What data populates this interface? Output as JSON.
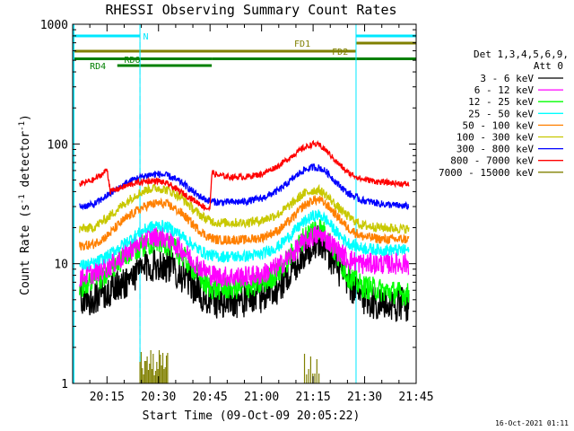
{
  "chart_data": {
    "type": "line",
    "title": "RHESSI Observing Summary Count Rates",
    "xlabel": "Start Time (09-Oct-09 20:05:22)",
    "ylabel_main": "Count Rate (s",
    "ylabel_sup1": "-1",
    "ylabel_mid": " detector",
    "ylabel_sup2": "-1",
    "ylabel_end": ")",
    "y_scale": "log",
    "ylim": [
      1,
      1000
    ],
    "xlim_minutes": [
      0,
      100
    ],
    "x_ticks": [
      {
        "minutes": 10,
        "label": "20:15"
      },
      {
        "minutes": 25,
        "label": "20:30"
      },
      {
        "minutes": 40,
        "label": "20:45"
      },
      {
        "minutes": 55,
        "label": "21:00"
      },
      {
        "minutes": 70,
        "label": "21:15"
      },
      {
        "minutes": 85,
        "label": "21:30"
      },
      {
        "minutes": 100,
        "label": "21:45"
      }
    ],
    "y_ticks": [
      {
        "value": 1,
        "label": "1"
      },
      {
        "value": 10,
        "label": "10"
      },
      {
        "value": 100,
        "label": "100"
      },
      {
        "value": 1000,
        "label": "1000"
      }
    ],
    "legend_header": [
      "Det 1,3,4,5,6,9,",
      "Att 0"
    ],
    "legend_placement": "right",
    "series": [
      {
        "name": "3 - 6 keV",
        "color": "#000000",
        "noise": 0.15,
        "points": [
          [
            2,
            5
          ],
          [
            6,
            5.3
          ],
          [
            10,
            5.8
          ],
          [
            14,
            6.5
          ],
          [
            18,
            8.2
          ],
          [
            22,
            9.6
          ],
          [
            25,
            10
          ],
          [
            28,
            9.6
          ],
          [
            32,
            8
          ],
          [
            36,
            6.2
          ],
          [
            38,
            5.2
          ],
          [
            40,
            4.9
          ],
          [
            45,
            4.9
          ],
          [
            50,
            5
          ],
          [
            55,
            5.4
          ],
          [
            60,
            6.5
          ],
          [
            64,
            9
          ],
          [
            67,
            12
          ],
          [
            70,
            15
          ],
          [
            72,
            15.5
          ],
          [
            74,
            13
          ],
          [
            77,
            9.5
          ],
          [
            80,
            7
          ],
          [
            84,
            5.3
          ],
          [
            88,
            4.7
          ],
          [
            93,
            4.6
          ],
          [
            98,
            4.6
          ]
        ]
      },
      {
        "name": "6 - 12 keV",
        "color": "#ff00ff",
        "noise": 0.09,
        "points": [
          [
            2,
            7.8
          ],
          [
            6,
            8.3
          ],
          [
            10,
            9.3
          ],
          [
            14,
            11
          ],
          [
            18,
            14
          ],
          [
            22,
            16.5
          ],
          [
            25,
            17
          ],
          [
            28,
            16
          ],
          [
            32,
            13
          ],
          [
            36,
            10
          ],
          [
            39,
            8.5
          ],
          [
            42,
            7.8
          ],
          [
            50,
            7.8
          ],
          [
            55,
            8.1
          ],
          [
            60,
            9.5
          ],
          [
            64,
            12
          ],
          [
            67,
            15
          ],
          [
            70,
            17
          ],
          [
            72,
            17.3
          ],
          [
            74,
            16
          ],
          [
            77,
            13
          ],
          [
            80,
            11
          ],
          [
            84,
            10
          ],
          [
            90,
            10
          ],
          [
            98,
            10
          ]
        ]
      },
      {
        "name": "12 - 25 keV",
        "color": "#00ff00",
        "noise": 0.1,
        "points": [
          [
            2,
            6.5
          ],
          [
            6,
            7
          ],
          [
            10,
            8.2
          ],
          [
            14,
            10.5
          ],
          [
            18,
            13
          ],
          [
            22,
            15
          ],
          [
            25,
            15.5
          ],
          [
            28,
            14.5
          ],
          [
            32,
            11.5
          ],
          [
            36,
            8.5
          ],
          [
            39,
            6.5
          ],
          [
            42,
            6.2
          ],
          [
            50,
            6.3
          ],
          [
            55,
            6.8
          ],
          [
            60,
            8.5
          ],
          [
            64,
            12
          ],
          [
            67,
            16
          ],
          [
            70,
            19.5
          ],
          [
            72,
            20
          ],
          [
            74,
            17
          ],
          [
            77,
            11.5
          ],
          [
            80,
            8
          ],
          [
            84,
            6.5
          ],
          [
            90,
            6
          ],
          [
            98,
            5.5
          ]
        ]
      },
      {
        "name": "25 - 50 keV",
        "color": "#00ffff",
        "noise": 0.05,
        "points": [
          [
            2,
            9.6
          ],
          [
            6,
            10
          ],
          [
            10,
            11.5
          ],
          [
            14,
            14
          ],
          [
            18,
            17
          ],
          [
            22,
            20
          ],
          [
            25,
            21
          ],
          [
            28,
            20
          ],
          [
            32,
            17
          ],
          [
            36,
            13.5
          ],
          [
            39,
            12
          ],
          [
            42,
            11.5
          ],
          [
            50,
            11.5
          ],
          [
            55,
            12
          ],
          [
            60,
            14
          ],
          [
            64,
            18
          ],
          [
            67,
            22
          ],
          [
            70,
            25
          ],
          [
            72,
            25.5
          ],
          [
            74,
            23
          ],
          [
            77,
            18
          ],
          [
            80,
            15
          ],
          [
            84,
            13.5
          ],
          [
            90,
            13
          ],
          [
            98,
            13
          ]
        ]
      },
      {
        "name": "50 - 100 keV",
        "color": "#ff8000",
        "noise": 0.04,
        "points": [
          [
            2,
            14
          ],
          [
            6,
            14.5
          ],
          [
            10,
            17
          ],
          [
            14,
            22
          ],
          [
            18,
            27
          ],
          [
            22,
            31
          ],
          [
            25,
            32
          ],
          [
            28,
            31
          ],
          [
            32,
            26
          ],
          [
            36,
            20
          ],
          [
            39,
            17
          ],
          [
            42,
            15.8
          ],
          [
            50,
            15.8
          ],
          [
            55,
            16.5
          ],
          [
            60,
            19
          ],
          [
            64,
            24
          ],
          [
            67,
            30
          ],
          [
            70,
            34
          ],
          [
            72,
            34
          ],
          [
            74,
            31
          ],
          [
            77,
            25
          ],
          [
            80,
            20
          ],
          [
            84,
            17
          ],
          [
            90,
            16
          ],
          [
            98,
            16
          ]
        ]
      },
      {
        "name": "100 - 300 keV",
        "color": "#c8c800",
        "noise": 0.04,
        "points": [
          [
            2,
            19.5
          ],
          [
            6,
            20
          ],
          [
            10,
            24
          ],
          [
            14,
            30
          ],
          [
            18,
            37
          ],
          [
            22,
            42
          ],
          [
            25,
            43
          ],
          [
            28,
            41
          ],
          [
            32,
            35
          ],
          [
            36,
            27
          ],
          [
            39,
            23.5
          ],
          [
            42,
            22
          ],
          [
            50,
            22
          ],
          [
            55,
            23
          ],
          [
            60,
            26
          ],
          [
            64,
            32
          ],
          [
            67,
            38
          ],
          [
            70,
            41
          ],
          [
            72,
            41
          ],
          [
            74,
            37
          ],
          [
            77,
            30
          ],
          [
            80,
            25
          ],
          [
            84,
            21
          ],
          [
            90,
            20
          ],
          [
            98,
            19.5
          ]
        ]
      },
      {
        "name": "300 - 800 keV",
        "color": "#0000ff",
        "noise": 0.03,
        "points": [
          [
            2,
            30
          ],
          [
            6,
            31
          ],
          [
            10,
            37
          ],
          [
            14,
            44
          ],
          [
            18,
            51
          ],
          [
            22,
            55
          ],
          [
            25,
            56
          ],
          [
            28,
            54
          ],
          [
            32,
            47
          ],
          [
            36,
            38
          ],
          [
            39,
            34
          ],
          [
            42,
            32.5
          ],
          [
            50,
            33
          ],
          [
            55,
            35
          ],
          [
            60,
            41
          ],
          [
            64,
            51
          ],
          [
            67,
            60
          ],
          [
            70,
            64
          ],
          [
            72,
            63
          ],
          [
            74,
            58
          ],
          [
            77,
            47
          ],
          [
            80,
            39
          ],
          [
            84,
            34
          ],
          [
            90,
            31.5
          ],
          [
            98,
            30
          ]
        ]
      },
      {
        "name": "800 - 7000 keV",
        "color": "#ff0000",
        "noise": 0.025,
        "points": [
          [
            2,
            46
          ],
          [
            6,
            50
          ],
          [
            9,
            57
          ],
          [
            10,
            62
          ],
          [
            11,
            40
          ],
          [
            14,
            43
          ],
          [
            18,
            47
          ],
          [
            22,
            49
          ],
          [
            25,
            49
          ],
          [
            28,
            46
          ],
          [
            32,
            39
          ],
          [
            36,
            33
          ],
          [
            39,
            29
          ],
          [
            40,
            29
          ],
          [
            40.5,
            58
          ],
          [
            42,
            55
          ],
          [
            46,
            53
          ],
          [
            50,
            53
          ],
          [
            55,
            56
          ],
          [
            60,
            66
          ],
          [
            64,
            80
          ],
          [
            67,
            92
          ],
          [
            70,
            100
          ],
          [
            72,
            97
          ],
          [
            74,
            87
          ],
          [
            77,
            70
          ],
          [
            80,
            58
          ],
          [
            84,
            51
          ],
          [
            90,
            48
          ],
          [
            98,
            46
          ]
        ]
      },
      {
        "name": "7000 - 15000 keV",
        "color": "#808000",
        "noise": 0,
        "points": []
      }
    ],
    "status_bars": [
      {
        "label": "N",
        "color": "#00e8ff"
      },
      {
        "label": "FD1",
        "color": "#808000"
      },
      {
        "label": "FD2",
        "color": "#808000"
      },
      {
        "label": "RD0",
        "color": "#008000"
      },
      {
        "label": "RD4",
        "color": "#008000"
      }
    ],
    "footer_timestamp": "16-Oct-2021 01:11"
  }
}
